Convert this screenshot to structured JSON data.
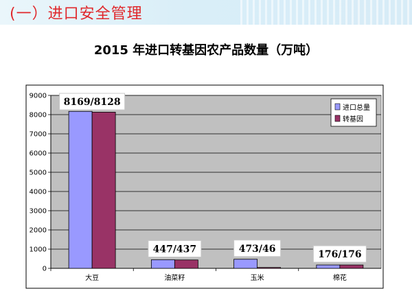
{
  "header": {
    "section_title": "(一）进口安全管理"
  },
  "colors": {
    "header_bg": "#d9eef8",
    "section_title": "#e0282c",
    "plot_bg": "#c0c0c0",
    "series_total": "#9999ff",
    "series_gm": "#993366"
  },
  "chart_data": {
    "type": "bar",
    "title": "2015 年进口转基因农产品数量（万吨）",
    "xlabel": "",
    "ylabel": "",
    "categories": [
      "大豆",
      "油菜籽",
      "玉米",
      "棉花"
    ],
    "series": [
      {
        "name": "进口总量",
        "values": [
          8169,
          447,
          473,
          176
        ],
        "color": "#9999ff"
      },
      {
        "name": "转基因",
        "values": [
          8128,
          437,
          46,
          176
        ],
        "color": "#993366"
      }
    ],
    "data_labels": [
      "8169/8128",
      "447/437",
      "473/46",
      "176/176"
    ],
    "ylim": [
      0,
      9000
    ],
    "yticks": [
      0,
      1000,
      2000,
      3000,
      4000,
      5000,
      6000,
      7000,
      8000,
      9000
    ],
    "grid": true,
    "legend_position": "top-right"
  }
}
